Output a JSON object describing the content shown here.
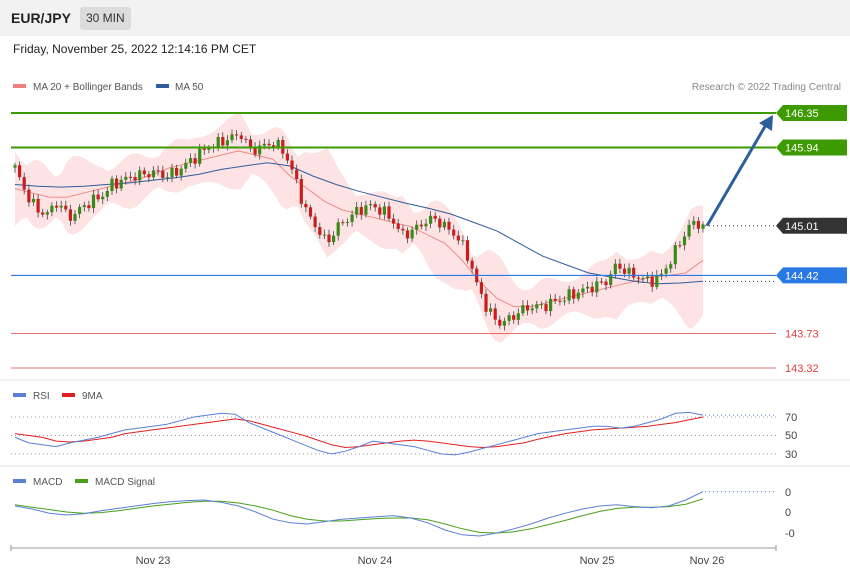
{
  "header": {
    "symbol": "EUR/JPY",
    "timeframe": "30 MIN"
  },
  "datetime": "Friday, November 25, 2022 12:14:16 PM CET",
  "copyright": "Research © 2022 Trading Central",
  "chart_data": {
    "type": "candlestick",
    "legend": [
      {
        "name": "MA 20 + Bollinger Bands",
        "color": "#f08080"
      },
      {
        "name": "MA 50",
        "color": "#2e5c9e"
      }
    ],
    "ylim": [
      143.2,
      146.6
    ],
    "last_price": {
      "value": 145.01,
      "label": "145.01"
    },
    "levels": [
      {
        "value": 146.35,
        "label": "146.35",
        "kind": "resistance",
        "color": "#3d9a00"
      },
      {
        "value": 145.94,
        "label": "145.94",
        "kind": "resistance",
        "color": "#3d9a00"
      },
      {
        "value": 144.42,
        "label": "144.42",
        "kind": "pivot",
        "color": "#2a78e4"
      },
      {
        "value": 143.73,
        "label": "143.73",
        "kind": "support",
        "color": "#e04040"
      },
      {
        "value": 143.32,
        "label": "143.32",
        "kind": "support",
        "color": "#e04040"
      }
    ],
    "projection": {
      "from": 145.01,
      "to": 146.35
    },
    "x_labels": [
      "Nov 23",
      "Nov 24",
      "Nov 25",
      "Nov 26"
    ],
    "price_path": [
      145.7,
      145.4,
      145.2,
      145.15,
      145.3,
      145.1,
      145.2,
      145.3,
      145.35,
      145.5,
      145.55,
      145.6,
      145.62,
      145.65,
      145.6,
      145.65,
      145.75,
      145.85,
      145.95,
      146.0,
      146.05,
      146.1,
      145.9,
      145.95,
      146.0,
      145.9,
      145.6,
      145.2,
      145.0,
      144.8,
      145.0,
      145.1,
      145.2,
      145.25,
      145.2,
      145.1,
      144.9,
      144.95,
      145.05,
      145.1,
      145.0,
      144.9,
      144.7,
      144.3,
      144.0,
      143.85,
      143.9,
      144.0,
      144.05,
      144.05,
      144.1,
      144.15,
      144.2,
      144.25,
      144.3,
      144.35,
      144.55,
      144.45,
      144.4,
      144.35,
      144.4,
      144.6,
      144.85,
      145.05,
      145.01
    ],
    "ma20_path": [
      145.45,
      145.4,
      145.35,
      145.35,
      145.4,
      145.45,
      145.5,
      145.55,
      145.62,
      145.7,
      145.75,
      145.8,
      145.85,
      145.9,
      145.85,
      145.8,
      145.6,
      145.45,
      145.3,
      145.2,
      145.15,
      145.1,
      145.05,
      145.0,
      144.9,
      144.8,
      144.6,
      144.35,
      144.15,
      144.05,
      144.05,
      144.1,
      144.15,
      144.2,
      144.25,
      144.3,
      144.35,
      144.4,
      144.42,
      144.45,
      144.6
    ],
    "ma50_path": [
      145.5,
      145.48,
      145.47,
      145.48,
      145.5,
      145.52,
      145.55,
      145.58,
      145.62,
      145.68,
      145.72,
      145.76,
      145.72,
      145.6,
      145.5,
      145.42,
      145.35,
      145.28,
      145.22,
      145.15,
      145.05,
      144.95,
      144.8,
      144.65,
      144.55,
      144.45,
      144.4,
      144.35,
      144.32,
      144.33,
      144.35
    ],
    "rsi": {
      "ticks": [
        "70",
        "50",
        "30"
      ],
      "legend": [
        {
          "name": "RSI",
          "color": "#5b7fd6"
        },
        {
          "name": "9MA",
          "color": "#e02020"
        }
      ],
      "rsi_values": [
        48,
        42,
        40,
        38,
        42,
        45,
        48,
        52,
        56,
        58,
        60,
        62,
        66,
        70,
        72,
        74,
        73,
        64,
        58,
        52,
        46,
        40,
        34,
        30,
        33,
        38,
        44,
        42,
        40,
        38,
        34,
        30,
        29,
        32,
        36,
        40,
        44,
        48,
        52,
        54,
        56,
        58,
        60,
        60,
        58,
        60,
        64,
        68,
        74,
        75,
        72
      ],
      "ma_values": [
        52,
        50,
        48,
        44,
        43,
        44,
        46,
        48,
        52,
        54,
        56,
        58,
        60,
        62,
        64,
        66,
        68,
        66,
        62,
        58,
        54,
        50,
        45,
        40,
        37,
        38,
        40,
        42,
        44,
        45,
        44,
        42,
        40,
        38,
        37,
        38,
        40,
        42,
        46,
        49,
        52,
        54,
        56,
        57,
        58,
        59,
        60,
        62,
        64,
        67,
        70
      ]
    },
    "macd": {
      "ticks": [
        "0",
        "0",
        "-0"
      ],
      "legend": [
        {
          "name": "MACD",
          "color": "#5b7fd6"
        },
        {
          "name": "MACD Signal",
          "color": "#4aa01c"
        }
      ],
      "macd_values": [
        0.1,
        0.05,
        -0.02,
        -0.05,
        -0.03,
        0.02,
        0.06,
        0.1,
        0.14,
        0.17,
        0.19,
        0.2,
        0.16,
        0.1,
        0.0,
        -0.12,
        -0.18,
        -0.2,
        -0.16,
        -0.12,
        -0.1,
        -0.08,
        -0.06,
        -0.1,
        -0.18,
        -0.3,
        -0.38,
        -0.4,
        -0.35,
        -0.28,
        -0.2,
        -0.1,
        -0.02,
        0.05,
        0.1,
        0.12,
        0.09,
        0.07,
        0.1,
        0.2,
        0.34
      ],
      "signal_values": [
        0.12,
        0.08,
        0.04,
        0.0,
        -0.02,
        -0.01,
        0.02,
        0.06,
        0.1,
        0.13,
        0.16,
        0.18,
        0.18,
        0.15,
        0.1,
        0.03,
        -0.06,
        -0.12,
        -0.15,
        -0.15,
        -0.13,
        -0.11,
        -0.1,
        -0.1,
        -0.13,
        -0.2,
        -0.28,
        -0.34,
        -0.35,
        -0.33,
        -0.28,
        -0.21,
        -0.14,
        -0.06,
        0.01,
        0.06,
        0.08,
        0.08,
        0.09,
        0.13,
        0.22
      ]
    }
  }
}
